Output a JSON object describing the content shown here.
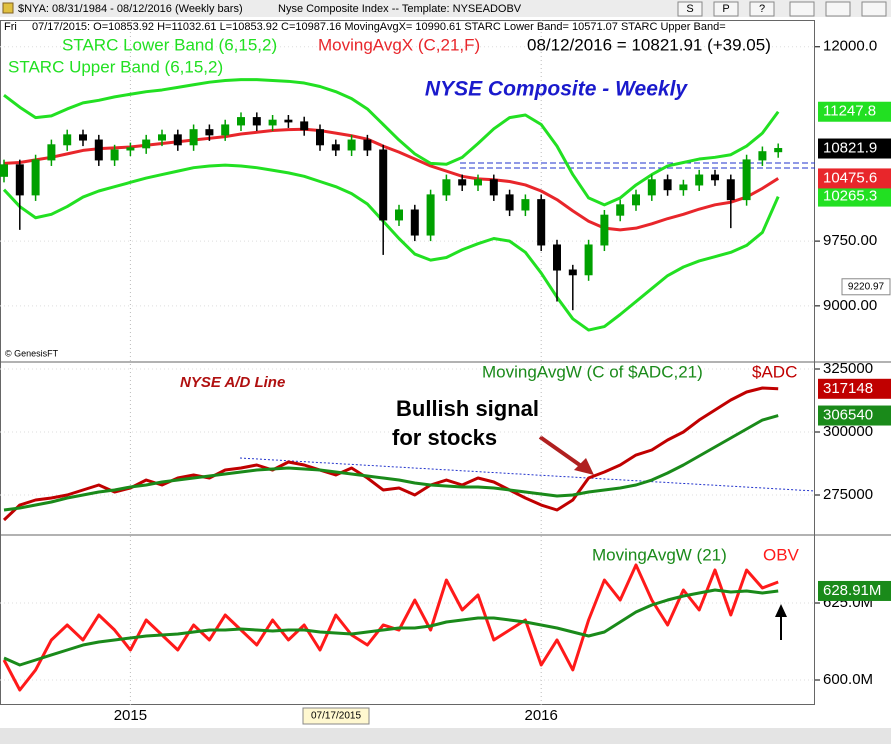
{
  "header": {
    "symbol_line": "$NYA: 08/31/1984 - 08/12/2016 (Weekly bars)",
    "name_line": "Nyse Composite Index  -- Template: NYSEADOBV",
    "buttons": [
      "S",
      "P",
      "?"
    ],
    "info_day": "Fri",
    "info_line": "07/17/2015: O=10853.92 H=11032.61 L=10853.92 C=10987.16 MovingAvgX= 10990.61 STARC Lower Band= 10571.07 STARC Upper Band="
  },
  "chart_data": [
    {
      "type": "candlestick",
      "title": "NYSE Composite - Weekly",
      "credit": "© GenesisFT",
      "last_label": "08/12/2016 = 10821.91 (+39.05)",
      "open": [
        10500,
        10633,
        10285,
        10690,
        10865,
        10980,
        10920,
        10690,
        10805,
        10830,
        10920,
        10980,
        10865,
        11040,
        10980,
        11095,
        11180,
        11095,
        11150,
        11130,
        11040,
        10865,
        10805,
        10920,
        10805,
        9995,
        10110,
        9820,
        10285,
        10460,
        10400,
        10460,
        10285,
        10110,
        10230,
        9705,
        9415,
        9360,
        9705,
        10050,
        10170,
        10285,
        10460,
        10345,
        10400,
        10515,
        10460,
        10230,
        10690,
        10785
      ],
      "high": [
        10693,
        10693,
        10750,
        10925,
        11040,
        11040,
        10980,
        10865,
        10890,
        10980,
        11040,
        11040,
        11100,
        11100,
        11155,
        11240,
        11240,
        11210,
        11210,
        11190,
        11100,
        10925,
        10980,
        10980,
        10865,
        10170,
        10170,
        10345,
        10520,
        10520,
        10520,
        10520,
        10345,
        10290,
        10290,
        9765,
        9475,
        9765,
        10110,
        10230,
        10345,
        10520,
        10520,
        10460,
        10575,
        10575,
        10520,
        10750,
        10845,
        10880
      ],
      "low": [
        10430,
        9880,
        10215,
        10620,
        10795,
        10850,
        10620,
        10620,
        10735,
        10760,
        10850,
        10795,
        10795,
        10910,
        10910,
        11025,
        11025,
        11025,
        11060,
        10970,
        10795,
        10735,
        10735,
        10735,
        9590,
        9925,
        9750,
        9750,
        10215,
        10330,
        10330,
        10215,
        10040,
        10040,
        9635,
        9050,
        8950,
        9290,
        9635,
        9980,
        10100,
        10215,
        10275,
        10275,
        10330,
        10390,
        9900,
        10160,
        10620,
        10715
      ],
      "close": [
        10633,
        10285,
        10690,
        10865,
        10980,
        10920,
        10690,
        10805,
        10830,
        10920,
        10980,
        10865,
        11040,
        10980,
        11095,
        11180,
        11095,
        11150,
        11130,
        11040,
        10865,
        10805,
        10920,
        10805,
        9995,
        10110,
        9820,
        10285,
        10460,
        10400,
        10460,
        10285,
        10110,
        10230,
        9705,
        9415,
        9360,
        9705,
        10050,
        10170,
        10285,
        10460,
        10345,
        10400,
        10515,
        10460,
        10230,
        10690,
        10785,
        10821.91
      ],
      "close_flag": "10821.9",
      "up_color": "#00a000",
      "down_color": "#000000",
      "cursor_value": 9220.97,
      "series": [
        {
          "name": "STARC Lower Band (6,15,2)",
          "color": "#22e022",
          "flag": true,
          "values": [
            10345,
            10150,
            10020,
            10060,
            10150,
            10260,
            10330,
            10380,
            10430,
            10480,
            10520,
            10560,
            10600,
            10620,
            10630,
            10620,
            10600,
            10570,
            10540,
            10500,
            10440,
            10380,
            10300,
            10180,
            9980,
            9780,
            9600,
            9530,
            9560,
            9650,
            9720,
            9780,
            9750,
            9620,
            9380,
            9100,
            8850,
            8720,
            8760,
            8900,
            9050,
            9200,
            9350,
            9450,
            9520,
            9570,
            9620,
            9700,
            9850,
            10265.3
          ]
        },
        {
          "name": "MovingAvgX (C,21,F)",
          "color": "#e8262b",
          "flag": true,
          "values": [
            10650,
            10660,
            10690,
            10720,
            10760,
            10800,
            10820,
            10830,
            10840,
            10860,
            10880,
            10900,
            10920,
            10940,
            10960,
            10990,
            11010,
            11030,
            11040,
            11045,
            11030,
            11000,
            10970,
            10930,
            10850,
            10780,
            10700,
            10620,
            10560,
            10500,
            10470,
            10460,
            10440,
            10400,
            10330,
            10230,
            10100,
            9980,
            9900,
            9880,
            9900,
            9950,
            10010,
            10060,
            10120,
            10170,
            10200,
            10260,
            10360,
            10475.6
          ]
        },
        {
          "name": "STARC Upper Band (6,15,2)",
          "color": "#22e022",
          "flag": true,
          "values": [
            11440,
            11300,
            11180,
            11200,
            11280,
            11350,
            11380,
            11420,
            11450,
            11480,
            11500,
            11530,
            11560,
            11590,
            11610,
            11620,
            11620,
            11610,
            11600,
            11580,
            11540,
            11480,
            11400,
            11280,
            11100,
            10920,
            10760,
            10650,
            10640,
            10720,
            10880,
            11050,
            11180,
            11210,
            11100,
            10850,
            10520,
            10250,
            10170,
            10250,
            10400,
            10520,
            10620,
            10660,
            10700,
            10720,
            10750,
            10850,
            11000,
            11247.8
          ]
        }
      ],
      "ylim": [
        8350,
        12310
      ],
      "yticks": [
        {
          "value": 12000,
          "label": "12000.0"
        },
        {
          "value": 9750,
          "label": "9750.00"
        },
        {
          "value": 9000,
          "label": "9000.00"
        }
      ]
    },
    {
      "type": "line",
      "title": "NYSE A/D Line",
      "annotation": [
        "Bullish signal",
        "for stocks"
      ],
      "series": [
        {
          "name": "$ADC",
          "color": "#c00000",
          "flag": true,
          "values": [
            265080,
            271030,
            273020,
            273810,
            275000,
            276990,
            278970,
            276190,
            277780,
            280950,
            278970,
            281750,
            282940,
            281750,
            284920,
            285720,
            286910,
            284920,
            288100,
            286910,
            284920,
            282940,
            285720,
            281750,
            276990,
            277780,
            275000,
            278970,
            280950,
            278970,
            281750,
            280160,
            276990,
            273810,
            271030,
            269050,
            273020,
            281750,
            284130,
            286910,
            290870,
            292860,
            296830,
            300000,
            304760,
            308730,
            312700,
            315870,
            317460,
            317148
          ]
        },
        {
          "name": "MovingAvgW (C of $ADC,21)",
          "color": "#1a8a1a",
          "flag": true,
          "values": [
            269050,
            269840,
            271030,
            272220,
            273810,
            275000,
            276190,
            276990,
            278180,
            278970,
            280160,
            280950,
            281750,
            282540,
            283330,
            284130,
            284920,
            285320,
            285720,
            285320,
            284920,
            284130,
            283330,
            282540,
            281750,
            280950,
            279760,
            278970,
            278570,
            278180,
            278180,
            277780,
            276990,
            276190,
            275400,
            274600,
            275000,
            276190,
            276990,
            277780,
            278970,
            280950,
            283730,
            286910,
            290480,
            294050,
            297620,
            301190,
            304760,
            306540
          ]
        }
      ],
      "ylim": [
        259130,
        327780
      ],
      "yticks": [
        325000,
        300000,
        275000
      ]
    },
    {
      "type": "line",
      "series": [
        {
          "name": "OBV",
          "color": "#ff1a1a",
          "values": [
            606.49,
            596.75,
            603.25,
            612.99,
            617.86,
            612.99,
            621.1,
            616.23,
            609.74,
            619.48,
            614.61,
            609.74,
            617.86,
            612.99,
            621.1,
            616.23,
            611.36,
            619.48,
            612.99,
            617.86,
            609.74,
            621.1,
            614.61,
            611.36,
            617.86,
            616.23,
            625.97,
            616.23,
            632.47,
            622.73,
            627.6,
            612.99,
            616.23,
            619.48,
            604.87,
            612.99,
            603.25,
            619.48,
            632.47,
            625.97,
            637.34,
            625.97,
            617.86,
            629.22,
            622.73,
            635.72,
            621.1,
            635.72,
            629.87,
            631.82
          ]
        },
        {
          "name": "MovingAvgW (21)",
          "color": "#1a8a1a",
          "flag": true,
          "flag_label": "628.91M",
          "values": [
            607.14,
            604.87,
            606.49,
            608.12,
            609.74,
            611.36,
            612.34,
            612.99,
            613.64,
            614.28,
            614.61,
            614.93,
            615.58,
            616.23,
            616.23,
            616.56,
            616.23,
            615.91,
            616.23,
            616.23,
            615.58,
            615.26,
            614.93,
            615.58,
            616.23,
            616.88,
            616.88,
            617.53,
            618.83,
            619.48,
            620.13,
            620.13,
            619.48,
            618.83,
            617.86,
            616.88,
            615.58,
            614.28,
            615.58,
            618.83,
            622.08,
            624.35,
            625.97,
            627.27,
            628.25,
            629.22,
            628.57,
            628.9,
            628.25,
            628.91
          ]
        }
      ],
      "ylim": [
        591.88,
        647.08
      ],
      "yticks": [
        {
          "value": 625,
          "label": "625.0M"
        },
        {
          "value": 600,
          "label": "600.0M"
        }
      ],
      "categories": [
        null,
        null,
        null,
        null,
        null,
        null,
        null,
        null,
        "2015",
        null,
        null,
        null,
        null,
        null,
        null,
        null,
        null,
        null,
        null,
        null,
        null,
        null,
        null,
        null,
        null,
        null,
        null,
        null,
        null,
        null,
        null,
        null,
        null,
        null,
        "2016",
        null,
        null,
        null,
        null,
        null,
        null,
        null,
        null,
        null,
        null,
        null,
        null,
        null,
        null,
        null
      ],
      "cursor_date": "07/17/2015"
    }
  ]
}
